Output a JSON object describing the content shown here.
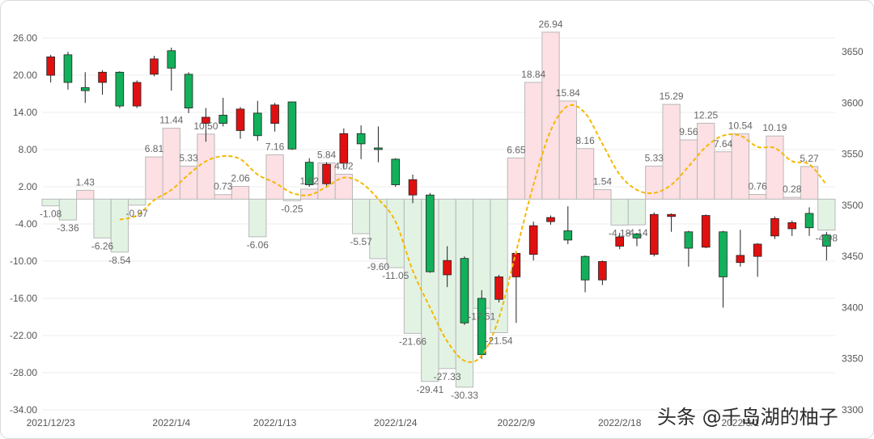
{
  "watermark": "头条 @千岛湖的柚子",
  "chart_data": {
    "type": "bar+candlestick+line",
    "title": "",
    "xlabel": "",
    "ylabel": "",
    "left_axis": {
      "ylim": [
        -34,
        29
      ],
      "ticks": [
        "26.00",
        "20.00",
        "14.00",
        "8.00",
        "2.00",
        "-4.00",
        "-10.00",
        "-16.00",
        "-22.00",
        "-28.00",
        "-34.00"
      ]
    },
    "right_axis": {
      "ylim": [
        3300,
        3670
      ],
      "ticks": [
        "3650",
        "3600",
        "3550",
        "3500",
        "3450",
        "3400",
        "3350",
        "3300"
      ]
    },
    "x_tick_labels": [
      "2021/12/23",
      "2022/1/4",
      "2022/1/13",
      "2022/1/24",
      "2022/2/9",
      "2022/2/18",
      "2022/3/1"
    ],
    "x_tick_indices": [
      0,
      7,
      13,
      20,
      27,
      33,
      40
    ],
    "colors": {
      "up_candle": "#e01010",
      "down_candle": "#12b05a",
      "candle_outline": "#222222",
      "pos_bar_fill": "#fde0e4",
      "neg_bar_fill": "#e2f3e4",
      "bar_outline": "#b8b8b8",
      "ma_line": "#f5b800"
    },
    "bars": {
      "name": "",
      "values": [
        -1.08,
        -3.36,
        1.43,
        -6.26,
        -8.54,
        -0.97,
        6.81,
        11.44,
        5.33,
        10.5,
        0.73,
        2.06,
        -6.06,
        7.16,
        -0.25,
        1.62,
        5.84,
        4.02,
        -5.57,
        -9.6,
        -11.05,
        -21.66,
        -29.41,
        -27.33,
        -30.33,
        -17.61,
        -21.54,
        6.65,
        18.84,
        26.94,
        15.84,
        8.16,
        1.54,
        -4.18,
        -4.14,
        5.33,
        15.29,
        9.56,
        12.25,
        7.64,
        10.54,
        0.76,
        10.19,
        0.28,
        5.27,
        -4.98
      ],
      "labels": [
        "-1.08",
        "-3.36",
        "1.43",
        "-6.26",
        "-8.54",
        "-0.97",
        "6.81",
        "11.44",
        "5.33",
        "10.50",
        "0.73",
        "2.06",
        "-6.06",
        "7.16",
        "-0.25",
        "1.62",
        "5.84",
        "4.02",
        "-5.57",
        "-9.60",
        "-11.05",
        "-21.66",
        "-29.41",
        "-27.33",
        "-30.33",
        "-17.61",
        "-21.54",
        "6.65",
        "18.84",
        "26.94",
        "15.84",
        "8.16",
        "1.54",
        "-4.18",
        "-4.14",
        "5.33",
        "15.29",
        "9.56",
        "12.25",
        "7.64",
        "10.54",
        "0.76",
        "10.19",
        "0.28",
        "5.27",
        "-4.98"
      ]
    },
    "candles": [
      {
        "o": 3627,
        "c": 3645,
        "h": 3647,
        "l": 3620
      },
      {
        "o": 3647,
        "c": 3620,
        "h": 3650,
        "l": 3613
      },
      {
        "o": 3615,
        "c": 3612,
        "h": 3630,
        "l": 3600
      },
      {
        "o": 3620,
        "c": 3630,
        "h": 3632,
        "l": 3608
      },
      {
        "o": 3630,
        "c": 3597,
        "h": 3631,
        "l": 3595
      },
      {
        "o": 3597,
        "c": 3620,
        "h": 3622,
        "l": 3595
      },
      {
        "o": 3628,
        "c": 3643,
        "h": 3646,
        "l": 3626
      },
      {
        "o": 3651,
        "c": 3634,
        "h": 3654,
        "l": 3612
      },
      {
        "o": 3628,
        "c": 3595,
        "h": 3630,
        "l": 3590
      },
      {
        "o": 3580,
        "c": 3586,
        "h": 3595,
        "l": 3562
      },
      {
        "o": 3588,
        "c": 3580,
        "h": 3605,
        "l": 3577
      },
      {
        "o": 3573,
        "c": 3594,
        "h": 3596,
        "l": 3565
      },
      {
        "o": 3590,
        "c": 3568,
        "h": 3602,
        "l": 3563
      },
      {
        "o": 3580,
        "c": 3598,
        "h": 3600,
        "l": 3572
      },
      {
        "o": 3601,
        "c": 3555,
        "h": 3601,
        "l": 3554
      },
      {
        "o": 3542,
        "c": 3520,
        "h": 3546,
        "l": 3518
      },
      {
        "o": 3521,
        "c": 3540,
        "h": 3542,
        "l": 3519
      },
      {
        "o": 3541,
        "c": 3570,
        "h": 3575,
        "l": 3535
      },
      {
        "o": 3570,
        "c": 3560,
        "h": 3578,
        "l": 3545
      },
      {
        "o": 3556,
        "c": 3555,
        "h": 3577,
        "l": 3542
      },
      {
        "o": 3545,
        "c": 3520,
        "h": 3546,
        "l": 3518
      },
      {
        "o": 3510,
        "c": 3525,
        "h": 3530,
        "l": 3502
      },
      {
        "o": 3510,
        "c": 3435,
        "h": 3512,
        "l": 3434
      },
      {
        "o": 3432,
        "c": 3446,
        "h": 3460,
        "l": 3420
      },
      {
        "o": 3448,
        "c": 3385,
        "h": 3450,
        "l": 3383
      },
      {
        "o": 3409,
        "c": 3354,
        "h": 3417,
        "l": 3350
      },
      {
        "o": 3408,
        "c": 3430,
        "h": 3432,
        "l": 3405
      },
      {
        "o": 3430,
        "c": 3453,
        "h": 3455,
        "l": 3385
      },
      {
        "o": 3452,
        "c": 3480,
        "h": 3484,
        "l": 3446
      },
      {
        "o": 3484,
        "c": 3488,
        "h": 3490,
        "l": 3481
      },
      {
        "o": 3475,
        "c": 3466,
        "h": 3499,
        "l": 3462
      },
      {
        "o": 3450,
        "c": 3427,
        "h": 3451,
        "l": 3415
      },
      {
        "o": 3427,
        "c": 3445,
        "h": 3446,
        "l": 3422
      },
      {
        "o": 3460,
        "c": 3469,
        "h": 3473,
        "l": 3457
      },
      {
        "o": 3472,
        "c": 3468,
        "h": 3473,
        "l": 3460
      },
      {
        "o": 3452,
        "c": 3491,
        "h": 3493,
        "l": 3450
      },
      {
        "o": 3489,
        "c": 3491,
        "h": 3492,
        "l": 3474
      },
      {
        "o": 3474,
        "c": 3458,
        "h": 3475,
        "l": 3440
      },
      {
        "o": 3459,
        "c": 3490,
        "h": 3491,
        "l": 3458
      },
      {
        "o": 3474,
        "c": 3430,
        "h": 3475,
        "l": 3400
      },
      {
        "o": 3444,
        "c": 3451,
        "h": 3476,
        "l": 3440
      },
      {
        "o": 3450,
        "c": 3462,
        "h": 3463,
        "l": 3430
      },
      {
        "o": 3470,
        "c": 3487,
        "h": 3489,
        "l": 3467
      },
      {
        "o": 3477,
        "c": 3483,
        "h": 3485,
        "l": 3470
      },
      {
        "o": 3492,
        "c": 3478,
        "h": 3498,
        "l": 3470
      },
      {
        "o": 3471,
        "c": 3460,
        "h": 3474,
        "l": 3446
      }
    ],
    "ma_line": {
      "name": "",
      "values": [
        null,
        null,
        null,
        null,
        3486,
        3490,
        3505,
        3515,
        3530,
        3543,
        3548,
        3545,
        3530,
        3522,
        3512,
        3510,
        3518,
        3527,
        3522,
        3506,
        3484,
        3436,
        3400,
        3367,
        3348,
        3353,
        3390,
        3455,
        3520,
        3573,
        3597,
        3590,
        3560,
        3530,
        3515,
        3512,
        3520,
        3538,
        3557,
        3568,
        3568,
        3557,
        3556,
        3543,
        3540,
        3520
      ]
    }
  }
}
